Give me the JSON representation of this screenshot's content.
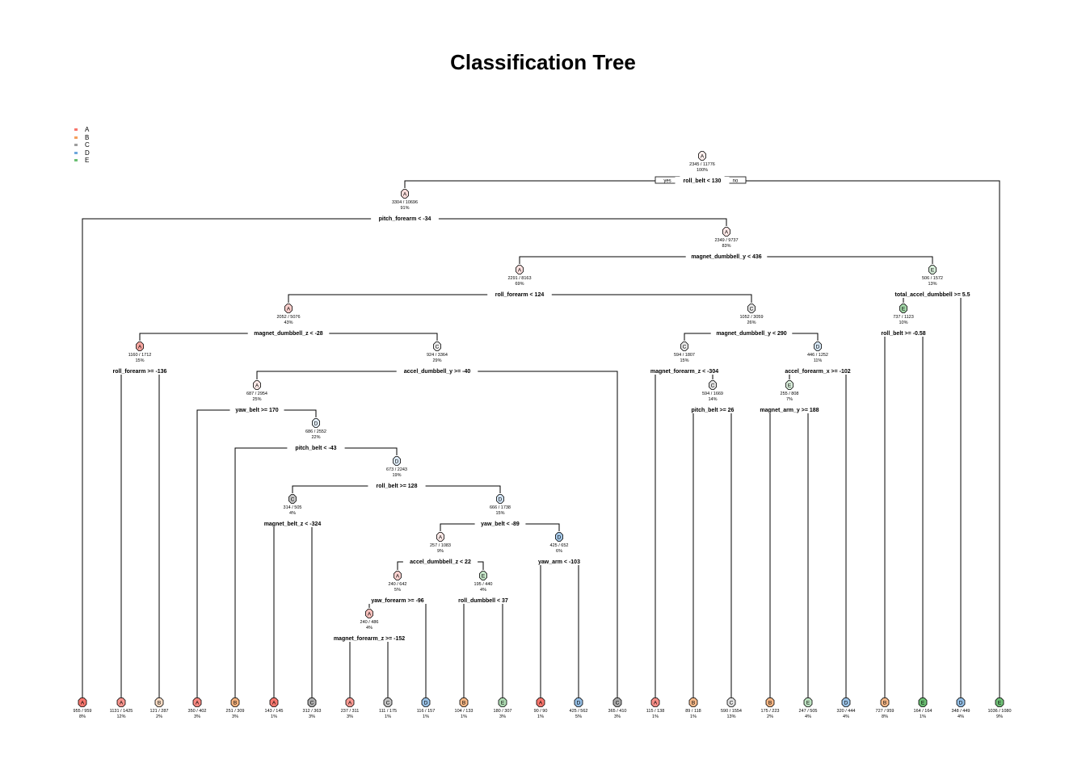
{
  "title": "Classification Tree",
  "legend": [
    {
      "label": "A",
      "color": "#F8766D"
    },
    {
      "label": "B",
      "color": "#F5A05E"
    },
    {
      "label": "C",
      "color": "#9E9E9E"
    },
    {
      "label": "D",
      "color": "#6FA8DC"
    },
    {
      "label": "E",
      "color": "#6BBF73"
    }
  ],
  "branch_labels": {
    "yes": "yes",
    "no": "no"
  },
  "nodes": [
    {
      "id": "n1",
      "cls": "A",
      "counts": "2345 / 11776",
      "pct": "100%",
      "split": "roll_belt < 130"
    },
    {
      "id": "n2",
      "cls": "A",
      "counts": "3304 / 10696",
      "pct": "91%",
      "split": "pitch_forearm < -34"
    },
    {
      "id": "n5",
      "cls": "A",
      "counts": "2349 / 9737",
      "pct": "83%",
      "split": "magnet_dumbbell_y < 436"
    },
    {
      "id": "n10",
      "cls": "A",
      "counts": "2291 / 8163",
      "pct": "69%",
      "split": "roll_forearm < 124"
    },
    {
      "id": "n11",
      "cls": "E",
      "counts": "506 / 1572",
      "pct": "13%",
      "split": "total_accel_dumbbell >= 5.5"
    },
    {
      "id": "n20",
      "cls": "A",
      "counts": "2052 / 5076",
      "pct": "43%",
      "split": "magnet_dumbbell_z < -28"
    },
    {
      "id": "n21",
      "cls": "C",
      "counts": "1052 / 3059",
      "pct": "26%",
      "split": "magnet_dumbbell_y < 290"
    },
    {
      "id": "n22",
      "cls": "E",
      "counts": "737 / 1123",
      "pct": "10%",
      "split": "roll_belt >= -0.58"
    },
    {
      "id": "n40",
      "cls": "A",
      "counts": "1160 / 1712",
      "pct": "15%",
      "split": "roll_forearm >= -136"
    },
    {
      "id": "n41",
      "cls": "C",
      "counts": "924 / 3364",
      "pct": "29%",
      "split": "accel_dumbbell_y >= -40"
    },
    {
      "id": "n42",
      "cls": "C",
      "counts": "594 / 1807",
      "pct": "15%",
      "split": "magnet_forearm_z < -304"
    },
    {
      "id": "n43",
      "cls": "D",
      "counts": "446 / 1252",
      "pct": "11%",
      "split": "accel_forearm_x >= -102"
    },
    {
      "id": "n82",
      "cls": "A",
      "counts": "687 / 2954",
      "pct": "25%",
      "split": "yaw_belt >= 170"
    },
    {
      "id": "n85",
      "cls": "C",
      "counts": "594 / 1669",
      "pct": "14%",
      "split": "pitch_belt >= 26"
    },
    {
      "id": "n86",
      "cls": "E",
      "counts": "255 / 808",
      "pct": "7%",
      "split": "magnet_arm_y >= 188"
    },
    {
      "id": "n165",
      "cls": "D",
      "counts": "686 / 2552",
      "pct": "22%",
      "split": "pitch_belt < -43"
    },
    {
      "id": "n331",
      "cls": "D",
      "counts": "673 / 2243",
      "pct": "19%",
      "split": "roll_belt >= 128"
    },
    {
      "id": "n662",
      "cls": "C",
      "counts": "314 / 505",
      "pct": "4%",
      "split": "magnet_belt_z < -324"
    },
    {
      "id": "n663",
      "cls": "D",
      "counts": "666 / 1738",
      "pct": "15%",
      "split": "yaw_belt < -89"
    },
    {
      "id": "n1326",
      "cls": "A",
      "counts": "257 / 1083",
      "pct": "9%",
      "split": "accel_dumbbell_z < 22"
    },
    {
      "id": "n1327",
      "cls": "D",
      "counts": "425 / 652",
      "pct": "6%",
      "split": "yaw_arm < -103"
    },
    {
      "id": "n2652",
      "cls": "A",
      "counts": "240 / 642",
      "pct": "5%",
      "split": "yaw_forearm >= -96"
    },
    {
      "id": "n2653",
      "cls": "E",
      "counts": "195 / 440",
      "pct": "4%",
      "split": "roll_dumbbell < 37"
    },
    {
      "id": "n5304",
      "cls": "A",
      "counts": "240 / 486",
      "pct": "4%",
      "split": "magnet_forearm_z >= -152"
    },
    {
      "id": "L1",
      "cls": "A",
      "counts": "955 / 959",
      "pct": "8%"
    },
    {
      "id": "L2",
      "cls": "A",
      "counts": "1131 / 1425",
      "pct": "12%"
    },
    {
      "id": "L3",
      "cls": "B",
      "counts": "121 / 287",
      "pct": "2%"
    },
    {
      "id": "L4",
      "cls": "A",
      "counts": "350 / 402",
      "pct": "3%"
    },
    {
      "id": "L5",
      "cls": "B",
      "counts": "251 / 309",
      "pct": "3%"
    },
    {
      "id": "L6",
      "cls": "A",
      "counts": "143 / 145",
      "pct": "1%"
    },
    {
      "id": "L7",
      "cls": "C",
      "counts": "312 / 363",
      "pct": "3%"
    },
    {
      "id": "L8",
      "cls": "A",
      "counts": "237 / 311",
      "pct": "3%"
    },
    {
      "id": "L9",
      "cls": "C",
      "counts": "111 / 175",
      "pct": "1%"
    },
    {
      "id": "L10",
      "cls": "D",
      "counts": "116 / 157",
      "pct": "1%"
    },
    {
      "id": "L11",
      "cls": "B",
      "counts": "104 / 133",
      "pct": "1%"
    },
    {
      "id": "L12",
      "cls": "E",
      "counts": "180 / 307",
      "pct": "3%"
    },
    {
      "id": "L13",
      "cls": "A",
      "counts": "90 / 90",
      "pct": "1%"
    },
    {
      "id": "L14",
      "cls": "D",
      "counts": "425 / 562",
      "pct": "5%"
    },
    {
      "id": "L15",
      "cls": "C",
      "counts": "365 / 410",
      "pct": "3%"
    },
    {
      "id": "L16",
      "cls": "A",
      "counts": "115 / 138",
      "pct": "1%"
    },
    {
      "id": "L17",
      "cls": "B",
      "counts": "89 / 118",
      "pct": "1%"
    },
    {
      "id": "L18",
      "cls": "C",
      "counts": "590 / 1554",
      "pct": "13%"
    },
    {
      "id": "L19",
      "cls": "B",
      "counts": "175 / 223",
      "pct": "2%"
    },
    {
      "id": "L20",
      "cls": "E",
      "counts": "247 / 505",
      "pct": "4%"
    },
    {
      "id": "L21",
      "cls": "D",
      "counts": "320 / 444",
      "pct": "4%"
    },
    {
      "id": "L22",
      "cls": "B",
      "counts": "727 / 959",
      "pct": "8%"
    },
    {
      "id": "L23",
      "cls": "E",
      "counts": "164 / 164",
      "pct": "1%"
    },
    {
      "id": "L24",
      "cls": "D",
      "counts": "348 / 449",
      "pct": "4%"
    },
    {
      "id": "L25",
      "cls": "E",
      "counts": "1036 / 1080",
      "pct": "9%"
    }
  ],
  "edges": [
    [
      "n1",
      "n2",
      "n25"
    ],
    [
      "n2",
      "L1",
      "n5"
    ],
    [
      "n5",
      "n10",
      "n11"
    ],
    [
      "n10",
      "n20",
      "n21"
    ],
    [
      "n11",
      "n22",
      "L24"
    ],
    [
      "n20",
      "n40",
      "n41"
    ],
    [
      "n21",
      "n42",
      "n43"
    ],
    [
      "n22",
      "L22",
      "L23"
    ],
    [
      "n40",
      "L2",
      "L3"
    ],
    [
      "n41",
      "n82",
      "L15"
    ],
    [
      "n42",
      "L16",
      "n85"
    ],
    [
      "n43",
      "n86",
      "L21"
    ],
    [
      "n82",
      "L4",
      "n165"
    ],
    [
      "n85",
      "L17",
      "L18"
    ],
    [
      "n86",
      "L19",
      "L20"
    ],
    [
      "n165",
      "L5",
      "n331"
    ],
    [
      "n331",
      "n662",
      "n663"
    ],
    [
      "n662",
      "L6",
      "L7"
    ],
    [
      "n663",
      "n1326",
      "n1327"
    ],
    [
      "n1326",
      "n2652",
      "n2653"
    ],
    [
      "n1327",
      "L13",
      "L14"
    ],
    [
      "n2652",
      "n5304",
      "L10"
    ],
    [
      "n2653",
      "L11",
      "L12"
    ],
    [
      "n5304",
      "L8",
      "L9"
    ]
  ]
}
